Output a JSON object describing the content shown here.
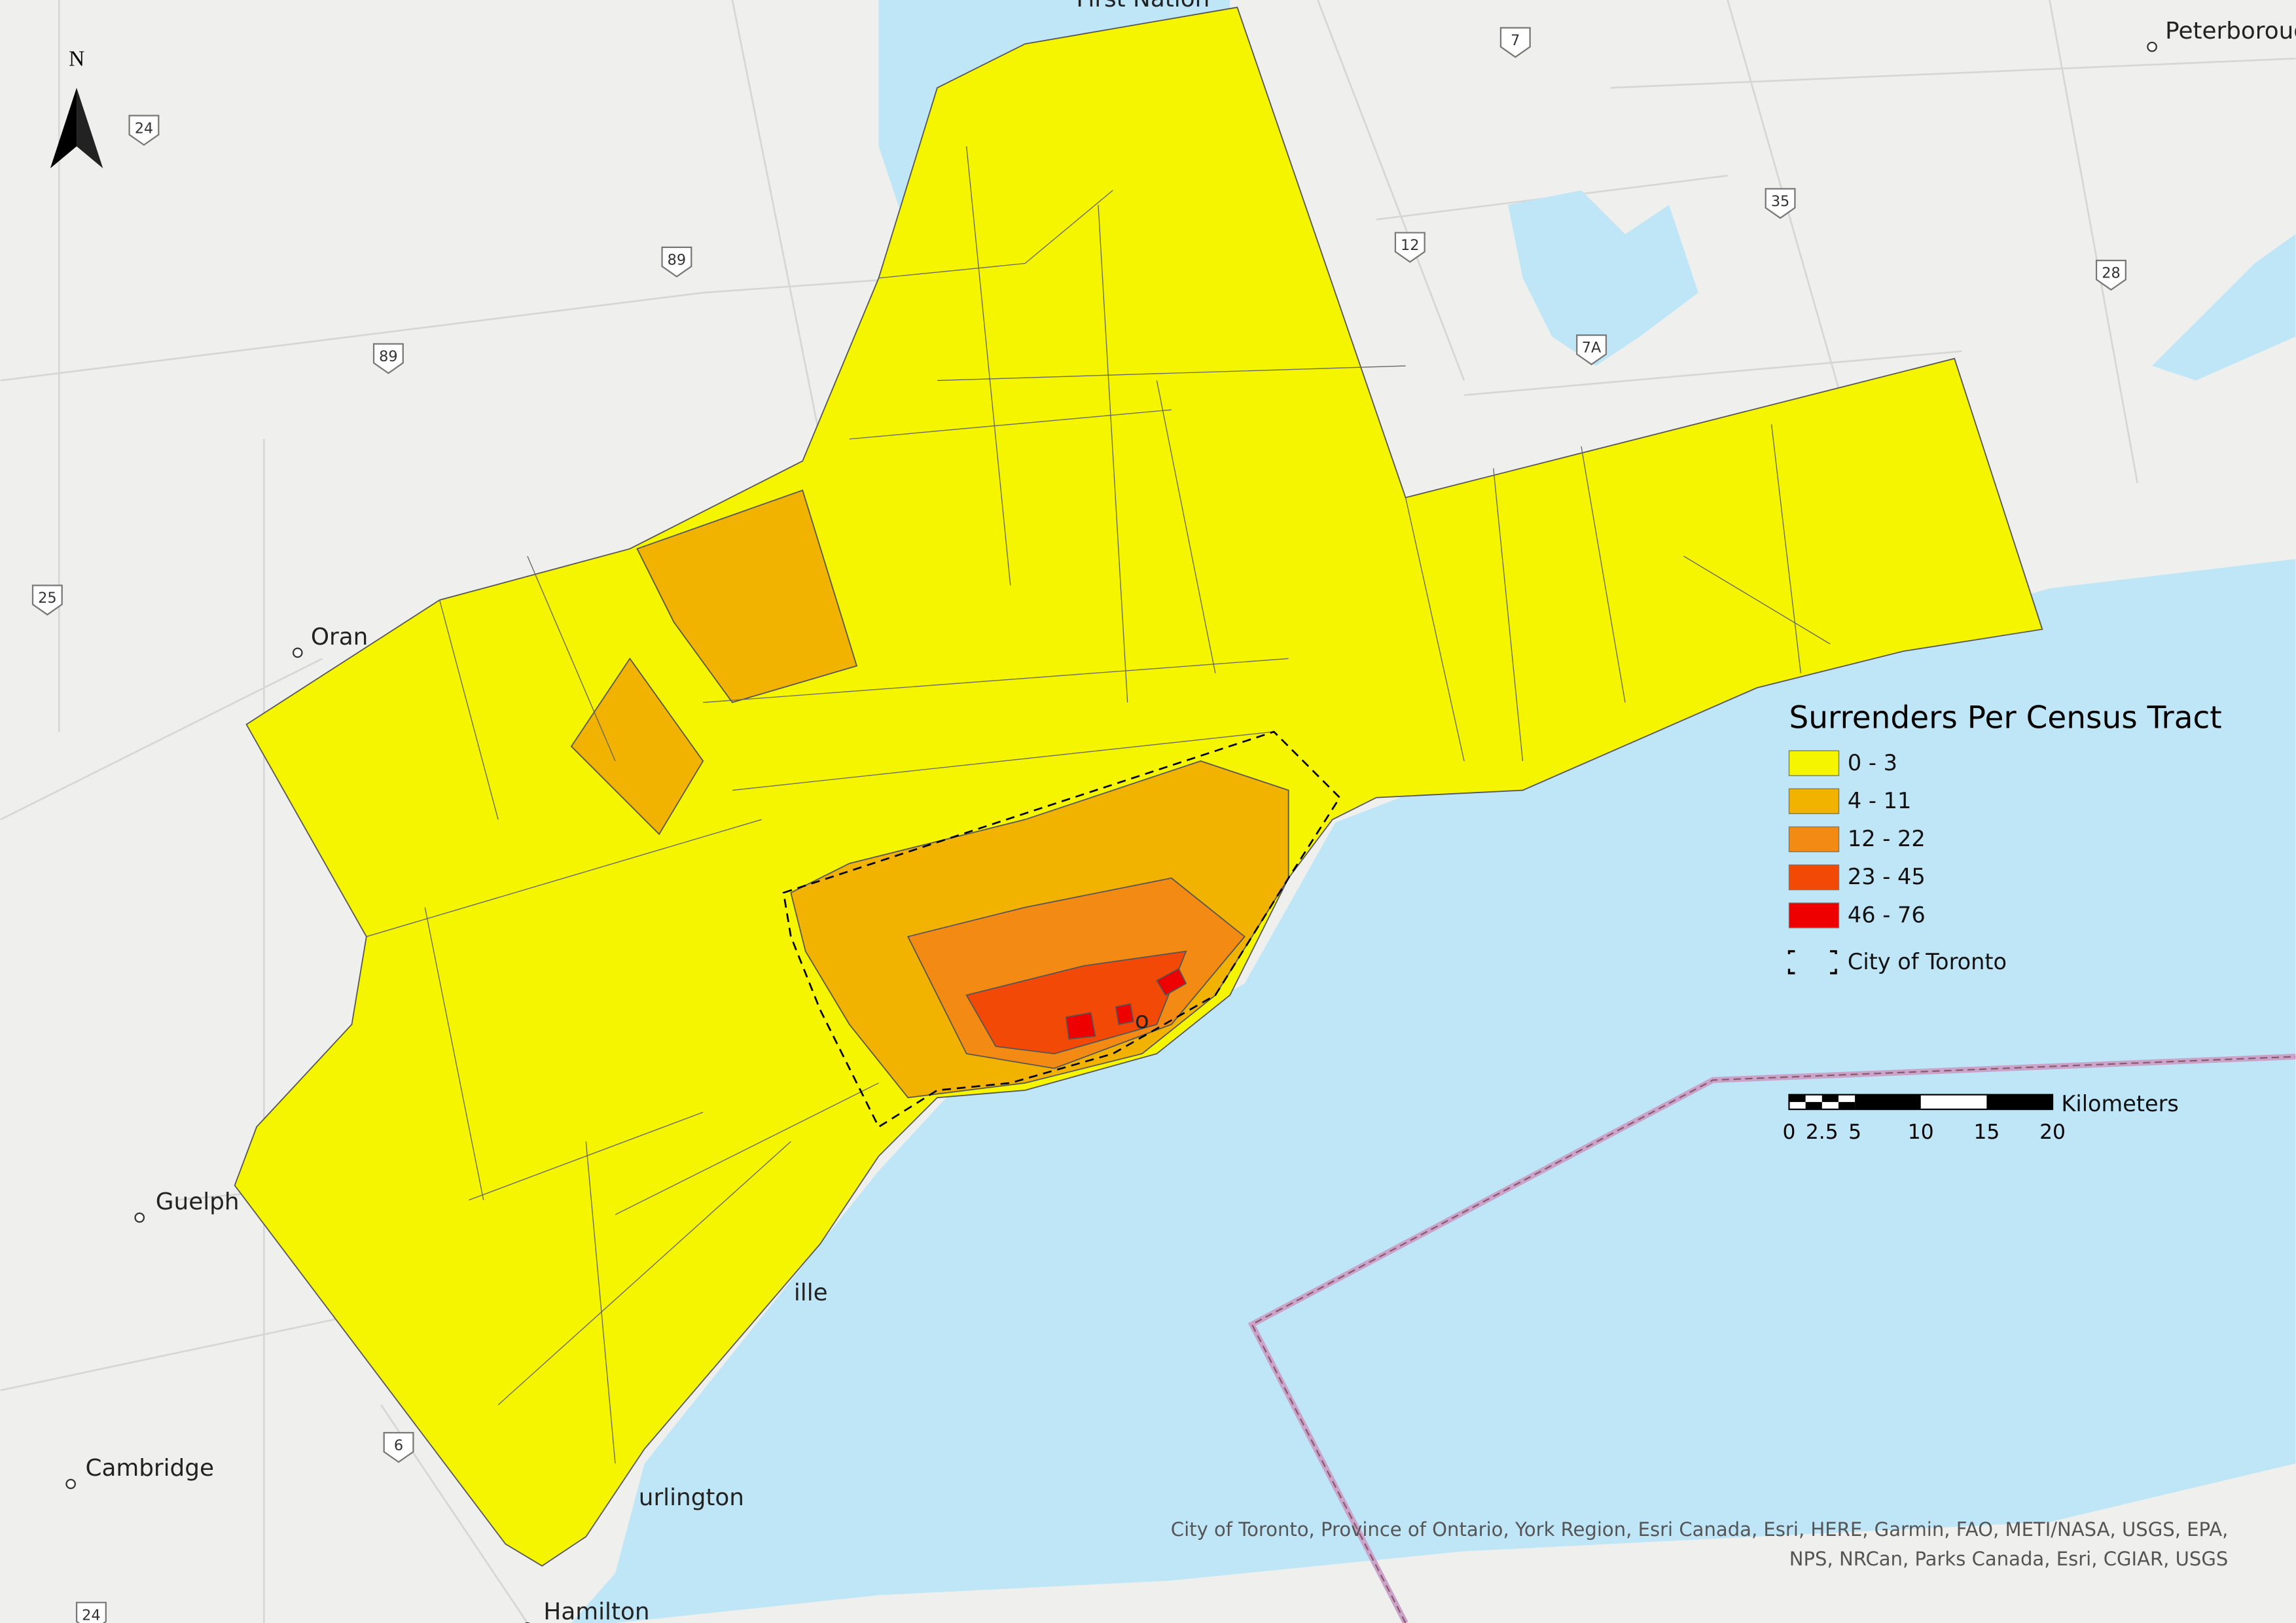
{
  "map": {
    "north_arrow": "N",
    "legend": {
      "title": "Surrenders Per Census Tract",
      "classes": [
        {
          "label": "0 - 3",
          "color": "#f5f500"
        },
        {
          "label": "4 - 11",
          "color": "#f2b200"
        },
        {
          "label": "12 - 22",
          "color": "#f28a14"
        },
        {
          "label": "23 - 45",
          "color": "#f24a06"
        },
        {
          "label": "46 - 76",
          "color": "#ee0000"
        }
      ],
      "boundary": "City of Toronto"
    },
    "scale_bar": {
      "unit": "Kilometers",
      "ticks": [
        "0",
        "2.5",
        "5",
        "10",
        "15",
        "20"
      ]
    },
    "places": [
      "Peterborough",
      "Guelph",
      "Cambridge",
      "Hamilton",
      "urlington",
      "ille",
      "Oran",
      "First Nation",
      "o"
    ],
    "route_shields": [
      "24",
      "89",
      "89",
      "25",
      "7",
      "12",
      "35",
      "28",
      "7A",
      "6",
      "24"
    ],
    "attribution": [
      "City of Toronto, Province of Ontario, York Region, Esri Canada, Esri, HERE, Garmin, FAO, METI/NASA, USGS, EPA,",
      "NPS, NRCan, Parks Canada, Esri, CGIAR, USGS"
    ]
  }
}
